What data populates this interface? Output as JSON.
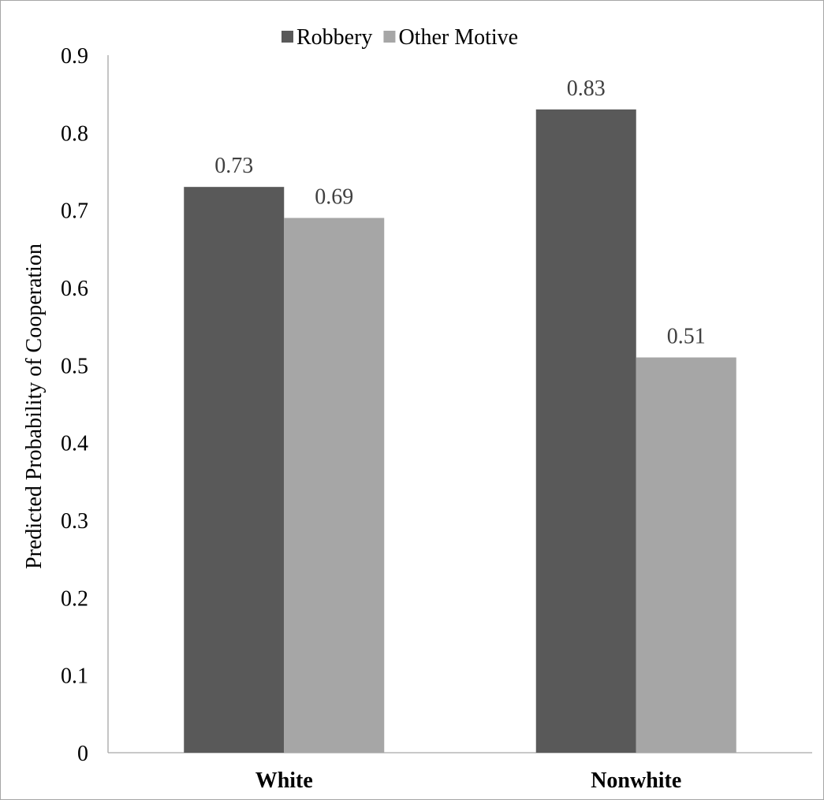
{
  "chart_data": {
    "type": "bar",
    "title": "",
    "xlabel": "",
    "ylabel": "Predicted Probability of Cooperation",
    "categories": [
      "White",
      "Nonwhite"
    ],
    "series": [
      {
        "name": "Robbery",
        "values": [
          0.73,
          0.83
        ],
        "labels": [
          "0.73",
          "0.83"
        ],
        "color": "#595959"
      },
      {
        "name": "Other Motive",
        "values": [
          0.69,
          0.51
        ],
        "labels": [
          "0.69",
          "0.51"
        ],
        "color": "#a6a6a6"
      }
    ],
    "ylim": [
      0,
      0.9
    ],
    "yticks": [
      "0",
      "0.1",
      "0.2",
      "0.3",
      "0.4",
      "0.5",
      "0.6",
      "0.7",
      "0.8",
      "0.9"
    ],
    "grid": false,
    "legend_position": "top"
  }
}
